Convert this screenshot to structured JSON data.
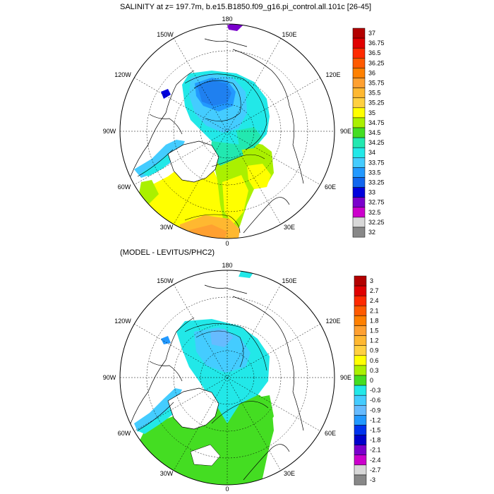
{
  "panels": [
    {
      "title": "SALINITY at z= 197.7m, b.e15.B1850.f09_g16.pi_control.all.101c [26-45]",
      "colorbar": {
        "labels": [
          "37",
          "36.75",
          "36.5",
          "36.25",
          "36",
          "35.75",
          "35.5",
          "35.25",
          "35",
          "34.75",
          "34.5",
          "34.25",
          "34",
          "33.75",
          "33.5",
          "33.25",
          "33",
          "32.75",
          "32.5",
          "32.25",
          "32"
        ],
        "colors": [
          "#b30000",
          "#e00000",
          "#ff2a00",
          "#ff5a00",
          "#ff8000",
          "#ffa030",
          "#ffb830",
          "#ffd040",
          "#ffff00",
          "#aaf000",
          "#44dd22",
          "#22e8b0",
          "#22e8e8",
          "#44ccff",
          "#2299ff",
          "#1166ee",
          "#0000dd",
          "#7a00cc",
          "#cc00cc",
          "#d8d8d8",
          "#888888"
        ]
      },
      "lon_labels": {
        "n180": "180",
        "w150": "150W",
        "e150": "150E",
        "w120": "120W",
        "e120": "120E",
        "w90": "90W",
        "e90": "90E",
        "w60": "60W",
        "e60": "60E",
        "w30": "30W",
        "e30": "30E",
        "z0": "0"
      }
    },
    {
      "title": "(MODEL - LEVITUS/PHC2)",
      "colorbar": {
        "labels": [
          "3",
          "2.7",
          "2.4",
          "2.1",
          "1.8",
          "1.5",
          "1.2",
          "0.9",
          "0.6",
          "0.3",
          "0",
          "-0.3",
          "-0.6",
          "-0.9",
          "-1.2",
          "-1.5",
          "-1.8",
          "-2.1",
          "-2.4",
          "-2.7",
          "-3"
        ],
        "colors": [
          "#b30000",
          "#e00000",
          "#ff2a00",
          "#ff5a00",
          "#ff8000",
          "#ffa030",
          "#ffb830",
          "#ffd040",
          "#ffff00",
          "#aaf000",
          "#44dd22",
          "#22e8e8",
          "#44ccff",
          "#66bbff",
          "#2299ff",
          "#0033ee",
          "#0000cc",
          "#7a00cc",
          "#cc00cc",
          "#d8d8d8",
          "#888888"
        ]
      },
      "lon_labels": {
        "n180": "180",
        "w150": "150W",
        "e150": "150E",
        "w120": "120W",
        "e120": "120E",
        "w90": "90W",
        "e90": "90E",
        "w60": "60W",
        "e60": "60E",
        "w30": "30W",
        "e30": "30E",
        "z0": "0"
      }
    }
  ]
}
